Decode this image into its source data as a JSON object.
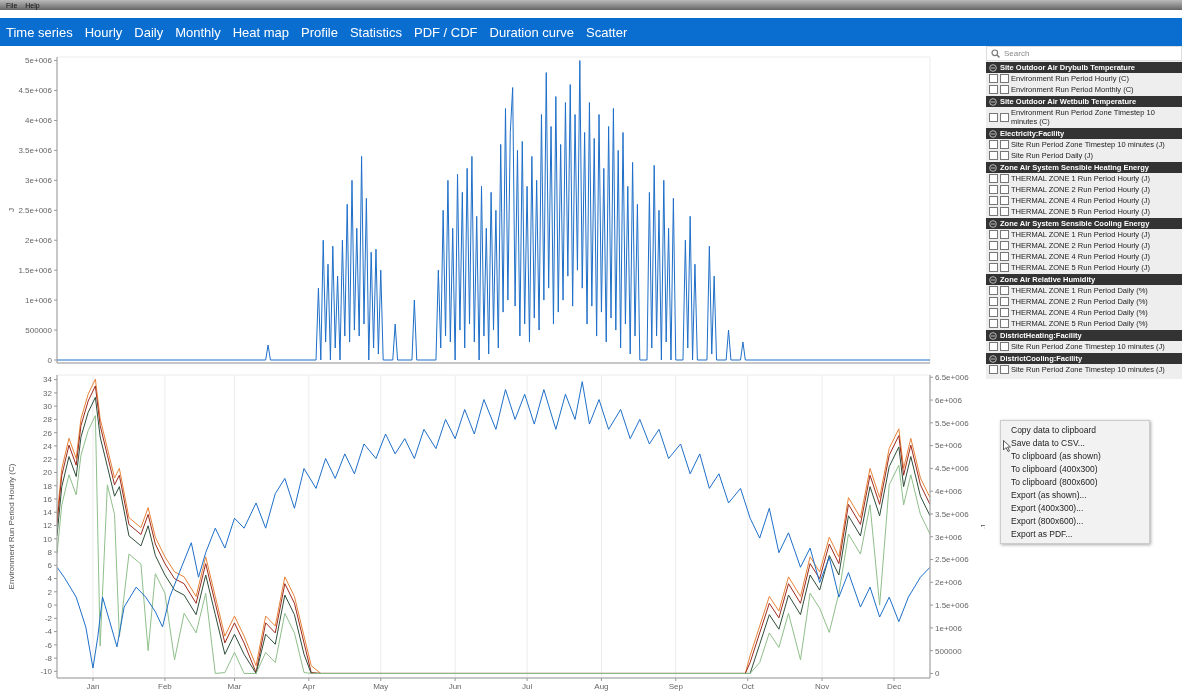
{
  "chart_data": [
    {
      "type": "other",
      "annotations": [
        "File",
        "Help"
      ]
    },
    {
      "type": "other",
      "annotations": [
        "Time series",
        "Hourly",
        "Daily",
        "Monthly",
        "Heat map",
        "Profile",
        "Statistics",
        "PDF / CDF",
        "Duration curve",
        "Scatter"
      ]
    },
    {
      "type": "line",
      "ylabel": "J",
      "xlim": [
        "--01-01",
        "--12-31"
      ],
      "ylim": [
        -50000.0,
        5060000.0
      ],
      "yticks": [
        0,
        500000,
        {
          "value": 1000000.0,
          "label": "1e+006"
        },
        {
          "value": 1500000.0,
          "label": "1.5e+006"
        },
        {
          "value": 2000000.0,
          "label": "2e+006"
        },
        {
          "value": 2500000.0,
          "label": "2.5e+006"
        },
        {
          "value": 3000000.0,
          "label": "3e+006"
        },
        {
          "value": 3500000.0,
          "label": "3.5e+006"
        },
        {
          "value": 4000000.0,
          "label": "4e+006"
        },
        {
          "value": 4500000.0,
          "label": "4.5e+006"
        },
        {
          "value": 5000000.0,
          "label": "5e+006"
        }
      ],
      "tick_labels": "y",
      "grid": true,
      "marker": "none",
      "line_style": "solid",
      "series": [
        {
          "color": "#1f6fc8",
          "x": [
            "--01-01",
            "--03-29",
            "--03-30",
            "--03-31",
            "--04-19",
            "--04-20",
            "--04-21",
            "--04-22",
            "--04-23",
            "--04-24",
            "--04-25",
            "--04-26",
            "--04-27",
            "--04-28",
            "--04-29",
            "--04-30",
            "--05-01",
            "--05-02",
            "--05-03",
            "--05-04",
            "--05-05",
            "--05-06",
            "--05-07",
            "--05-08",
            "--05-09",
            "--05-10",
            "--05-11",
            "--05-12",
            "--05-13",
            "--05-14",
            "--05-15",
            "--05-16",
            "--05-17",
            "--05-21",
            "--05-22",
            "--05-23",
            "--05-29",
            "--05-30",
            "--05-31",
            "--06-08",
            "--06-09",
            "--06-10",
            "--06-11",
            "--06-12",
            "--06-13",
            "--06-14",
            "--06-15",
            "--06-16",
            "--06-17",
            "--06-18",
            "--06-19",
            "--06-20",
            "--06-21",
            "--06-22",
            "--06-23",
            "--06-24",
            "--06-25",
            "--06-26",
            "--06-27",
            "--06-28",
            "--06-29",
            "--06-30",
            "--07-01",
            "--07-02",
            "--07-03",
            "--07-04",
            "--07-05",
            "--07-06",
            "--07-07",
            "--07-08",
            "--07-09",
            "--07-10",
            "--07-11",
            "--07-12",
            "--07-13",
            "--07-14",
            "--07-15",
            "--07-16",
            "--07-17",
            "--07-18",
            "--07-19",
            "--07-20",
            "--07-21",
            "--07-22",
            "--07-23",
            "--07-24",
            "--07-25",
            "--07-26",
            "--07-27",
            "--07-28",
            "--07-29",
            "--07-30",
            "--07-31",
            "--08-01",
            "--08-02",
            "--08-03",
            "--08-04",
            "--08-05",
            "--08-06",
            "--08-07",
            "--08-08",
            "--08-09",
            "--08-10",
            "--08-11",
            "--08-12",
            "--08-13",
            "--08-14",
            "--08-15",
            "--08-16",
            "--08-17",
            "--08-18",
            "--08-19",
            "--08-20",
            "--08-21",
            "--08-22",
            "--08-23",
            "--08-24",
            "--08-25",
            "--08-26",
            "--08-27",
            "--08-28",
            "--08-29",
            "--08-30",
            "--08-31",
            "--09-01",
            "--09-04",
            "--09-05",
            "--09-06",
            "--09-07",
            "--09-08",
            "--09-09",
            "--09-10",
            "--09-11",
            "--09-12",
            "--09-13",
            "--09-14",
            "--09-15",
            "--09-16",
            "--09-19",
            "--09-20",
            "--09-21",
            "--09-22",
            "--09-23",
            "--09-24",
            "--09-25",
            "--09-29",
            "--09-30",
            "--10-01",
            "--10-02",
            "--10-03",
            "--10-07",
            "--10-08",
            "--10-09",
            "--10-13",
            "--10-14",
            "--10-15",
            "--12-31"
          ],
          "values": [
            0,
            0,
            250000.0,
            0,
            0,
            1200000.0,
            0,
            2000000.0,
            300000.0,
            1600000.0,
            0,
            1900000.0,
            200000.0,
            1400000.0,
            0,
            2000000.0,
            400000.0,
            2600000.0,
            300000.0,
            3000000.0,
            500000.0,
            2200000.0,
            400000.0,
            3400000.0,
            600000.0,
            2700000.0,
            0,
            1800000.0,
            200000.0,
            1850000.0,
            100000.0,
            1500000.0,
            0,
            0,
            600000.0,
            0,
            0,
            1000000.0,
            0,
            0,
            1500000.0,
            200000.0,
            2500000.0,
            400000.0,
            3000000.0,
            300000.0,
            2200000.0,
            0,
            3100000.0,
            500000.0,
            2800000.0,
            200000.0,
            3200000.0,
            600000.0,
            3400000.0,
            300000.0,
            2400000.0,
            0,
            2900000.0,
            400000.0,
            2200000.0,
            100000.0,
            2800000.0,
            500000.0,
            2500000.0,
            200000.0,
            3600000.0,
            800000.0,
            4200000.0,
            1000000.0,
            3800000.0,
            4550000.0,
            900000.0,
            3500000.0,
            400000.0,
            3650000.0,
            600000.0,
            2900000.0,
            300000.0,
            3400000.0,
            700000.0,
            3000000.0,
            500000.0,
            4100000.0,
            1000000.0,
            4800000.0,
            1200000.0,
            3900000.0,
            600000.0,
            4400000.0,
            800000.0,
            3600000.0,
            1000000.0,
            4300000.0,
            1400000.0,
            4600000.0,
            900000.0,
            4100000.0,
            1500000.0,
            5000000.0,
            1200000.0,
            3800000.0,
            600000.0,
            4300000.0,
            900000.0,
            3700000.0,
            400000.0,
            4100000.0,
            800000.0,
            3200000.0,
            300000.0,
            3900000.0,
            700000.0,
            4200000.0,
            500000.0,
            3500000.0,
            200000.0,
            3800000.0,
            600000.0,
            2900000.0,
            100000.0,
            3300000.0,
            400000.0,
            2600000.0,
            0,
            0,
            2800000.0,
            200000.0,
            3250000.0,
            400000.0,
            2500000.0,
            0,
            3000000.0,
            300000.0,
            2200000.0,
            0,
            2700000.0,
            0,
            0,
            2000000.0,
            200000.0,
            2400000.0,
            0,
            1600000.0,
            0,
            0,
            1900000.0,
            100000.0,
            1400000.0,
            0,
            0,
            500000.0,
            0,
            0,
            300000.0,
            0,
            0
          ]
        }
      ]
    },
    {
      "type": "line",
      "ylabel": "Environment Run Period Hourly (C)",
      "y2label": "J",
      "xlim": [
        "--01-01",
        "--12-31"
      ],
      "xticks": [
        {
          "value": "--01-16",
          "label": "Jan"
        },
        {
          "value": "--02-15",
          "label": "Feb"
        },
        {
          "value": "--03-16",
          "label": "Mar"
        },
        {
          "value": "--04-16",
          "label": "Apr"
        },
        {
          "value": "--05-16",
          "label": "May"
        },
        {
          "value": "--06-16",
          "label": "Jun"
        },
        {
          "value": "--07-16",
          "label": "Jul"
        },
        {
          "value": "--08-16",
          "label": "Aug"
        },
        {
          "value": "--09-16",
          "label": "Sep"
        },
        {
          "value": "--10-16",
          "label": "Oct"
        },
        {
          "value": "--11-16",
          "label": "Nov"
        },
        {
          "value": "--12-16",
          "label": "Dec"
        }
      ],
      "ylim": [
        -11,
        34.7
      ],
      "yticks": [
        -10,
        -8,
        -6,
        -4,
        -2,
        0,
        2,
        4,
        6,
        8,
        10,
        12,
        14,
        16,
        18,
        20,
        22,
        24,
        26,
        28,
        30,
        32,
        34
      ],
      "y2lim": [
        -100000.0,
        6550000.0
      ],
      "y2ticks": [
        0,
        500000,
        {
          "value": 1000000.0,
          "label": "1e+006"
        },
        {
          "value": 1500000.0,
          "label": "1.5e+006"
        },
        {
          "value": 2000000.0,
          "label": "2e+006"
        },
        {
          "value": 2500000.0,
          "label": "2.5e+006"
        },
        {
          "value": 3000000.0,
          "label": "3e+006"
        },
        {
          "value": 3500000.0,
          "label": "3.5e+006"
        },
        {
          "value": 4000000.0,
          "label": "4e+006"
        },
        {
          "value": 4500000.0,
          "label": "4.5e+006"
        },
        {
          "value": 5000000.0,
          "label": "5e+006"
        },
        {
          "value": 5500000.0,
          "label": "5.5e+006"
        },
        {
          "value": 6000000.0,
          "label": "6e+006"
        },
        {
          "value": 6500000.0,
          "label": "6.5e+006"
        }
      ],
      "grid": true,
      "marker": "none",
      "line_style": "solid",
      "series": [
        {
          "color": "#e8833a",
          "axis": "y2",
          "x": [
            "--01-01",
            "--01-03",
            "--01-06",
            "--01-09",
            "--01-11",
            "--01-14",
            "--01-17",
            "--01-19",
            "--01-22",
            "--01-25",
            "--01-27",
            "--01-31",
            "--02-05",
            "--02-08",
            "--02-11",
            "--02-15",
            "--02-19",
            "--02-23",
            "--02-28",
            "--03-04",
            "--03-08",
            "--03-12",
            "--03-16",
            "--03-20",
            "--03-25",
            "--03-29",
            "--04-02",
            "--04-06",
            "--04-10",
            "--04-14",
            "--04-17",
            "--04-21",
            "--10-15",
            "--10-17",
            "--10-21",
            "--10-25",
            "--10-29",
            "--11-02",
            "--11-07",
            "--11-11",
            "--11-15",
            "--11-19",
            "--11-23",
            "--11-27",
            "--12-02",
            "--12-06",
            "--12-10",
            "--12-14",
            "--12-18",
            "--12-20",
            "--12-23",
            "--12-27",
            "--12-31"
          ],
          "values": [
            3420000.0,
            4500000.0,
            5160000.0,
            4720000.0,
            5590000.0,
            6130000.0,
            6460000.0,
            5590000.0,
            4940000.0,
            4290000.0,
            4500000.0,
            3420000.0,
            3200000.0,
            3640000.0,
            2990000.0,
            2560000.0,
            2230000.0,
            2120000.0,
            1690000.0,
            2560000.0,
            1690000.0,
            820000.0,
            1260000.0,
            820000.0,
            170000.0,
            1260000.0,
            1040000.0,
            2120000.0,
            1690000.0,
            820000.0,
            170000.0,
            0,
            0,
            390000.0,
            1040000.0,
            1690000.0,
            1370000.0,
            2120000.0,
            1690000.0,
            2560000.0,
            2230000.0,
            2990000.0,
            2560000.0,
            3860000.0,
            3420000.0,
            4500000.0,
            3860000.0,
            4940000.0,
            5370000.0,
            4500000.0,
            5160000.0,
            4290000.0,
            3860000.0
          ]
        },
        {
          "color": "#9e2a1c",
          "axis": "y2",
          "x": [
            "--01-01",
            "--01-03",
            "--01-06",
            "--01-09",
            "--01-11",
            "--01-14",
            "--01-17",
            "--01-19",
            "--01-22",
            "--01-25",
            "--01-27",
            "--01-31",
            "--02-05",
            "--02-08",
            "--02-11",
            "--02-15",
            "--02-19",
            "--02-23",
            "--02-28",
            "--03-04",
            "--03-08",
            "--03-12",
            "--03-16",
            "--03-20",
            "--03-25",
            "--03-29",
            "--04-02",
            "--04-06",
            "--04-10",
            "--04-14",
            "--04-17",
            "--04-21",
            "--10-15",
            "--10-17",
            "--10-21",
            "--10-25",
            "--10-29",
            "--11-02",
            "--11-07",
            "--11-11",
            "--11-15",
            "--11-19",
            "--11-23",
            "--11-27",
            "--12-02",
            "--12-06",
            "--12-10",
            "--12-14",
            "--12-18",
            "--12-20",
            "--12-23",
            "--12-27",
            "--12-31"
          ],
          "values": [
            3270000.0,
            4350000.0,
            5010000.0,
            4570000.0,
            5440000.0,
            5980000.0,
            6310000.0,
            5440000.0,
            4790000.0,
            4140000.0,
            4350000.0,
            3270000.0,
            3050000.0,
            3490000.0,
            2840000.0,
            2410000.0,
            2080000.0,
            1970000.0,
            1540000.0,
            2410000.0,
            1540000.0,
            670000.0,
            1110000.0,
            670000.0,
            20000.0,
            1110000.0,
            890000.0,
            1970000.0,
            1540000.0,
            670000.0,
            20000.0,
            0,
            0,
            240000.0,
            890000.0,
            1540000.0,
            1220000.0,
            1970000.0,
            1540000.0,
            2410000.0,
            2080000.0,
            2840000.0,
            2410000.0,
            3710000.0,
            3270000.0,
            4350000.0,
            3710000.0,
            4790000.0,
            5220000.0,
            4350000.0,
            5010000.0,
            4140000.0,
            3710000.0
          ]
        },
        {
          "color": "#2f4f3a",
          "axis": "y2",
          "x": [
            "--01-01",
            "--01-03",
            "--01-06",
            "--01-09",
            "--01-11",
            "--01-14",
            "--01-17",
            "--01-19",
            "--01-22",
            "--01-25",
            "--01-27",
            "--01-31",
            "--02-05",
            "--02-08",
            "--02-11",
            "--02-15",
            "--02-19",
            "--02-23",
            "--02-28",
            "--03-04",
            "--03-08",
            "--03-12",
            "--03-16",
            "--03-20",
            "--03-25",
            "--03-29",
            "--04-02",
            "--04-06",
            "--04-10",
            "--04-14",
            "--04-17",
            "--04-21",
            "--10-15",
            "--10-17",
            "--10-21",
            "--10-25",
            "--10-29",
            "--11-02",
            "--11-07",
            "--11-11",
            "--11-15",
            "--11-19",
            "--11-23",
            "--11-27",
            "--12-02",
            "--12-06",
            "--12-10",
            "--12-14",
            "--12-18",
            "--12-20",
            "--12-23",
            "--12-27",
            "--12-31"
          ],
          "values": [
            3020000.0,
            4100000.0,
            4760000.0,
            4320000.0,
            5190000.0,
            5730000.0,
            6060000.0,
            5190000.0,
            4540000.0,
            3890000.0,
            4100000.0,
            3020000.0,
            2800000.0,
            3240000.0,
            2590000.0,
            2160000.0,
            1830000.0,
            1720000.0,
            1290000.0,
            2160000.0,
            1290000.0,
            420000.0,
            860000.0,
            420000.0,
            0,
            860000.0,
            640000.0,
            1720000.0,
            1290000.0,
            420000.0,
            0,
            0,
            0,
            0,
            640000.0,
            1290000.0,
            970000.0,
            1720000.0,
            1290000.0,
            2160000.0,
            1830000.0,
            2590000.0,
            2160000.0,
            3460000.0,
            3020000.0,
            4100000.0,
            3460000.0,
            4540000.0,
            4970000.0,
            4100000.0,
            4760000.0,
            3890000.0,
            3460000.0
          ]
        },
        {
          "color": "#8fbf8a",
          "axis": "y2",
          "x": [
            "--01-01",
            "--01-03",
            "--01-06",
            "--01-09",
            "--01-11",
            "--01-14",
            "--01-17",
            "--01-19",
            "--01-22",
            "--01-25",
            "--01-27",
            "--01-31",
            "--02-05",
            "--02-08",
            "--02-11",
            "--02-15",
            "--02-19",
            "--02-23",
            "--02-28",
            "--03-04",
            "--03-08",
            "--03-12",
            "--03-16",
            "--03-20",
            "--03-25",
            "--03-29",
            "--04-02",
            "--04-06",
            "--04-10",
            "--04-14",
            "--04-17",
            "--04-21",
            "--10-15",
            "--10-17",
            "--10-21",
            "--10-25",
            "--10-29",
            "--11-02",
            "--11-07",
            "--11-11",
            "--11-15",
            "--11-19",
            "--11-23",
            "--11-27",
            "--12-02",
            "--12-06",
            "--12-10",
            "--12-14",
            "--12-18",
            "--12-20",
            "--12-23",
            "--12-27",
            "--12-31"
          ],
          "values": [
            2620000.0,
            3700000.0,
            4360000.0,
            3920000.0,
            4790000.0,
            5330000.0,
            5660000.0,
            600000.0,
            4140000.0,
            3490000.0,
            800000.0,
            2620000.0,
            2400000.0,
            500000.0,
            2190000.0,
            1760000.0,
            300000.0,
            1320000.0,
            890000.0,
            1760000.0,
            0,
            20000.0,
            460000.0,
            0,
            0,
            460000.0,
            240000.0,
            1320000.0,
            890000.0,
            20000.0,
            0,
            0,
            0,
            0,
            240000.0,
            890000.0,
            570000.0,
            1320000.0,
            300000.0,
            1760000.0,
            1430000.0,
            900000.0,
            1760000.0,
            3060000.0,
            2620000.0,
            3700000.0,
            1500000.0,
            4140000.0,
            4570000.0,
            3700000.0,
            4360000.0,
            3490000.0,
            3060000.0
          ]
        },
        {
          "color": "#1f6fc8",
          "x": [
            "--01-01",
            "--01-04",
            "--01-09",
            "--01-13",
            "--01-16",
            "--01-18",
            "--01-20",
            "--01-23",
            "--01-26",
            "--01-29",
            "--02-03",
            "--02-07",
            "--02-11",
            "--02-14",
            "--02-17",
            "--02-21",
            "--02-26",
            "--03-01",
            "--03-04",
            "--03-08",
            "--03-12",
            "--03-16",
            "--03-20",
            "--03-25",
            "--03-29",
            "--04-02",
            "--04-06",
            "--04-10",
            "--04-14",
            "--04-19",
            "--04-23",
            "--04-27",
            "--05-01",
            "--05-05",
            "--05-09",
            "--05-14",
            "--05-18",
            "--05-22",
            "--05-26",
            "--05-30",
            "--06-03",
            "--06-08",
            "--06-12",
            "--06-16",
            "--06-20",
            "--06-24",
            "--06-28",
            "--07-03",
            "--07-07",
            "--07-11",
            "--07-15",
            "--07-19",
            "--07-23",
            "--07-28",
            "--08-01",
            "--08-05",
            "--08-08",
            "--08-11",
            "--08-15",
            "--08-19",
            "--08-24",
            "--08-28",
            "--09-01",
            "--09-05",
            "--09-09",
            "--09-13",
            "--09-18",
            "--09-22",
            "--09-26",
            "--09-30",
            "--10-04",
            "--10-08",
            "--10-13",
            "--10-17",
            "--10-21",
            "--10-25",
            "--10-29",
            "--11-02",
            "--11-07",
            "--11-11",
            "--11-15",
            "--11-19",
            "--11-23",
            "--11-27",
            "--12-02",
            "--12-06",
            "--12-10",
            "--12-14",
            "--12-18",
            "--12-22",
            "--12-27",
            "--12-31"
          ],
          "values": [
            5.7,
            4.2,
            1.2,
            -3.3,
            -9.5,
            -4.8,
            1.2,
            -2.5,
            -6.3,
            -0.3,
            2.7,
            1.2,
            -1,
            -3.3,
            1.2,
            4.9,
            9.4,
            4.2,
            7.9,
            11.6,
            8.6,
            13.1,
            11.6,
            15.4,
            11.6,
            16.8,
            19.1,
            14.6,
            20.6,
            17.6,
            22.1,
            19.1,
            22.8,
            19.8,
            24.3,
            22.1,
            25.8,
            22.8,
            25.1,
            22.1,
            26.5,
            23.6,
            28,
            25.1,
            29.5,
            25.8,
            31,
            26.5,
            32.5,
            28,
            31.8,
            27.3,
            32.5,
            26.5,
            31.8,
            28,
            33.7,
            27.3,
            31,
            26.5,
            29.5,
            25.1,
            28,
            24.3,
            26.5,
            22.1,
            24.3,
            19.8,
            22.8,
            17.6,
            19.8,
            15.4,
            17.6,
            13.1,
            10.1,
            14.6,
            7.9,
            10.9,
            5.7,
            8.6,
            3.4,
            7.2,
            1.2,
            4.9,
            -0.3,
            2.7,
            -1.8,
            1.2,
            -2.5,
            1.2,
            4.2,
            5.7
          ]
        }
      ]
    },
    {
      "type": "other",
      "annotations": [
        "Search"
      ]
    },
    {
      "type": "other",
      "title": "Site Outdoor Air Drybulb Temperature",
      "annotations": [
        "Environment Run Period Hourly (C)",
        "Environment Run Period Monthly (C)"
      ]
    },
    {
      "type": "other",
      "title": "Site Outdoor Air Wetbulb Temperature",
      "annotations": [
        "Environment Run Period Zone Timestep 10 minutes (C)"
      ]
    },
    {
      "type": "other",
      "title": "Electricity:Facility",
      "annotations": [
        "Site Run Period Zone Timestep 10 minutes (J)",
        "Site Run Period Daily (J)"
      ]
    },
    {
      "type": "other",
      "title": "Zone Air System Sensible Heating Energy",
      "annotations": [
        "THERMAL ZONE 1 Run Period Hourly (J)",
        "THERMAL ZONE 2 Run Period Hourly (J)",
        "THERMAL ZONE 4 Run Period Hourly (J)",
        "THERMAL ZONE 5 Run Period Hourly (J)"
      ]
    },
    {
      "type": "other",
      "title": "Zone Air System Sensible Cooling Energy",
      "annotations": [
        "THERMAL ZONE 1 Run Period Hourly (J)",
        "THERMAL ZONE 2 Run Period Hourly (J)",
        "THERMAL ZONE 4 Run Period Hourly (J)",
        "THERMAL ZONE 5 Run Period Hourly (J)"
      ]
    },
    {
      "type": "other",
      "title": "Zone Air Relative Humidity",
      "annotations": [
        "THERMAL ZONE 1 Run Period Daily (%)",
        "THERMAL ZONE 2 Run Period Daily (%)",
        "THERMAL ZONE 4 Run Period Daily (%)",
        "THERMAL ZONE 5 Run Period Daily (%)"
      ]
    },
    {
      "type": "other",
      "title": "DistrictHeating:Facility",
      "annotations": [
        "Site Run Period Zone Timestep 10 minutes (J)"
      ]
    },
    {
      "type": "other",
      "title": "DistrictCooling:Facility",
      "annotations": [
        "Site Run Period Zone Timestep 10 minutes (J)"
      ]
    },
    {
      "type": "other",
      "annotations": [
        "Copy data to clipboard",
        "Save data to CSV...",
        "To clipboard (as shown)",
        "To clipboard (400x300)",
        "To clipboard (800x600)",
        "Export (as shown)...",
        "Export (400x300)...",
        "Export (800x600)...",
        "Export as PDF..."
      ]
    }
  ]
}
